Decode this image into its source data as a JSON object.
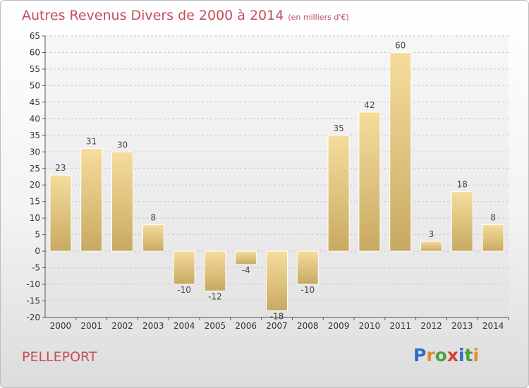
{
  "header": {
    "title": "Autres Revenus Divers de 2000 à 2014",
    "subtitle": "(en milliers d'€)"
  },
  "footer": {
    "commune": "PELLEPORT",
    "logo_text": "Proxiti",
    "logo_colors": [
      "#2e6fc9",
      "#e9892d",
      "#4aa43c",
      "#d6403a",
      "#2e6fc9",
      "#4aa43c",
      "#e9892d"
    ]
  },
  "colors": {
    "title": "#c74c5c",
    "bar_light": "#f6dd9c",
    "bar_dark": "#c8a962",
    "grid": "#c9c9c9"
  },
  "chart_data": {
    "type": "bar",
    "title": "Autres Revenus Divers de 2000 à 2014",
    "xlabel": "",
    "ylabel": "",
    "categories": [
      "2000",
      "2001",
      "2002",
      "2003",
      "2004",
      "2005",
      "2006",
      "2007",
      "2008",
      "2009",
      "2010",
      "2011",
      "2012",
      "2013",
      "2014"
    ],
    "values": [
      23,
      31,
      30,
      8,
      -10,
      -12,
      -4,
      -18,
      -10,
      35,
      42,
      60,
      3,
      18,
      8
    ],
    "ylim": [
      -20,
      65
    ],
    "yticks": [
      -20,
      -15,
      -10,
      -5,
      0,
      5,
      10,
      15,
      20,
      25,
      30,
      35,
      40,
      45,
      50,
      55,
      60,
      65
    ],
    "grid": true,
    "data_labels": true
  }
}
